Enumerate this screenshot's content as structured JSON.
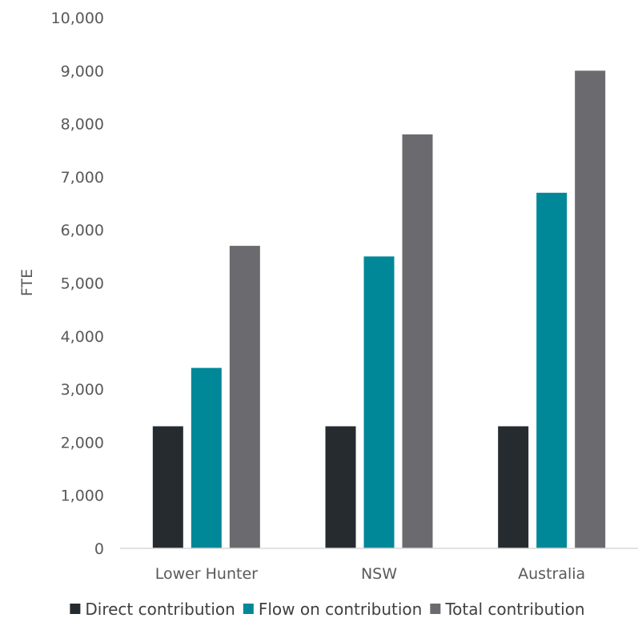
{
  "chart_data": {
    "type": "bar",
    "title": "",
    "xlabel": "",
    "ylabel": "FTE",
    "ylim": [
      0,
      10000
    ],
    "yticks": [
      0,
      1000,
      2000,
      3000,
      4000,
      5000,
      6000,
      7000,
      8000,
      9000,
      10000
    ],
    "ytick_labels": [
      "0",
      "1,000",
      "2,000",
      "3,000",
      "4,000",
      "5,000",
      "6,000",
      "7,000",
      "8,000",
      "9,000",
      "10,000"
    ],
    "categories": [
      "Lower Hunter",
      "NSW",
      "Australia"
    ],
    "grid": false,
    "legend": "bottom",
    "series": [
      {
        "name": "Direct contribution",
        "color": "#262b30",
        "values": [
          2300,
          2300,
          2300
        ]
      },
      {
        "name": "Flow on contribution",
        "color": "#008899",
        "values": [
          3400,
          5500,
          6700
        ]
      },
      {
        "name": "Total contribution",
        "color": "#6b6b6f",
        "values": [
          5700,
          7800,
          9000
        ]
      }
    ]
  }
}
